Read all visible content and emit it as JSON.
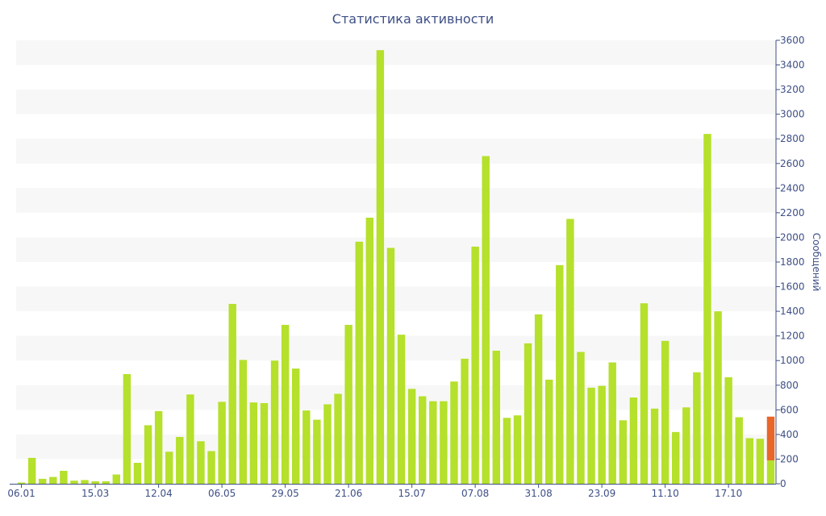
{
  "chart_data": {
    "type": "bar",
    "title": "Статистика активности",
    "ylabel": "Сообщений",
    "xlabel": "",
    "ylim": [
      0,
      3600
    ],
    "y_ticks": [
      0,
      200,
      400,
      600,
      800,
      1000,
      1200,
      1400,
      1600,
      1800,
      2000,
      2200,
      2400,
      2600,
      2800,
      3000,
      3200,
      3400,
      3600
    ],
    "x_tick_labels": [
      {
        "index": 0,
        "label": "06.01"
      },
      {
        "index": 7,
        "label": "15.03"
      },
      {
        "index": 13,
        "label": "12.04"
      },
      {
        "index": 19,
        "label": "06.05"
      },
      {
        "index": 25,
        "label": "29.05"
      },
      {
        "index": 31,
        "label": "21.06"
      },
      {
        "index": 37,
        "label": "15.07"
      },
      {
        "index": 43,
        "label": "07.08"
      },
      {
        "index": 49,
        "label": "31.08"
      },
      {
        "index": 55,
        "label": "23.09"
      },
      {
        "index": 61,
        "label": "11.10"
      },
      {
        "index": 67,
        "label": "17.10"
      }
    ],
    "values": [
      10,
      210,
      40,
      55,
      105,
      25,
      30,
      20,
      20,
      75,
      890,
      170,
      475,
      590,
      260,
      380,
      725,
      345,
      265,
      665,
      1460,
      1005,
      660,
      655,
      1000,
      1290,
      935,
      595,
      520,
      645,
      730,
      1290,
      1965,
      2160,
      3520,
      1915,
      1210,
      770,
      710,
      670,
      670,
      830,
      1015,
      1925,
      2660,
      1080,
      535,
      555,
      1140,
      1375,
      845,
      1775,
      2150,
      1070,
      780,
      795,
      985,
      515,
      700,
      1465,
      610,
      1160,
      420,
      620,
      905,
      2840,
      1400,
      865,
      540,
      370,
      365,
      545
    ],
    "highlight_index": 71,
    "highlight_partial_value": 190,
    "colors": {
      "bar": "#b5e02b",
      "highlight": "#e8662a",
      "text": "#3e4f86",
      "band": "#f7f7f7",
      "axis": "#3e4f86"
    },
    "grid": "alternating-bands",
    "legend": "none",
    "y_axis_side": "right"
  }
}
